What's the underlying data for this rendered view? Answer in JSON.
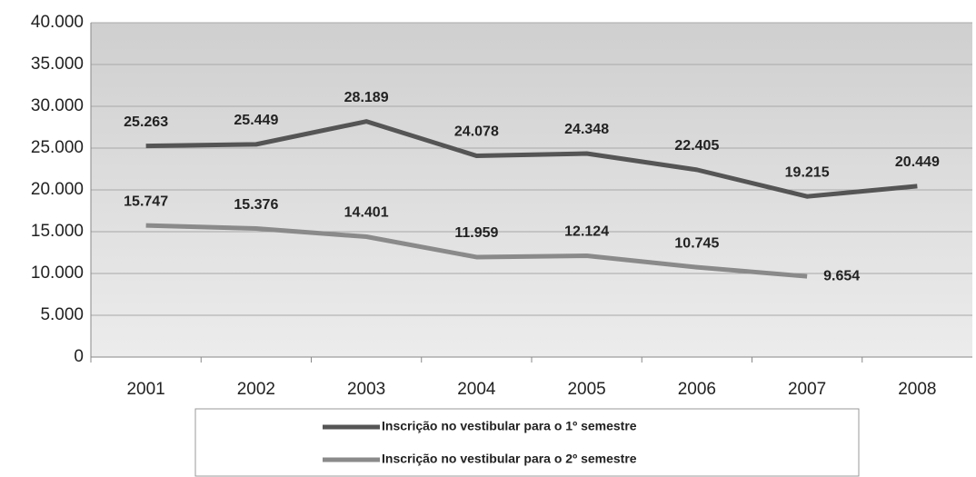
{
  "chart_data": {
    "type": "line",
    "categories": [
      "2001",
      "2002",
      "2003",
      "2004",
      "2005",
      "2006",
      "2007",
      "2008"
    ],
    "series": [
      {
        "name": "Inscrição no vestibular para o 1º semestre",
        "color": "#555555",
        "values": [
          25263,
          25449,
          28189,
          24078,
          24348,
          22405,
          19215,
          20449
        ],
        "value_labels": [
          "25.263",
          "25.449",
          "28.189",
          "24.078",
          "24.348",
          "22.405",
          "19.215",
          "20.449"
        ]
      },
      {
        "name": "Inscrição no vestibular para o 2º semestre",
        "color": "#8a8a8a",
        "values": [
          15747,
          15376,
          14401,
          11959,
          12124,
          10745,
          9654,
          null
        ],
        "value_labels": [
          "15.747",
          "15.376",
          "14.401",
          "11.959",
          "12.124",
          "10.745",
          "9.654",
          null
        ]
      }
    ],
    "ylim": [
      0,
      40000
    ],
    "yticks": [
      0,
      {
        "value": 5000,
        "label": "5.000"
      },
      {
        "value": 10000,
        "label": "10.000"
      },
      {
        "value": 15000,
        "label": "15.000"
      },
      {
        "value": 20000,
        "label": "20.000"
      },
      {
        "value": 25000,
        "label": "25.000"
      },
      {
        "value": 30000,
        "label": "30.000"
      },
      {
        "value": 35000,
        "label": "35.000"
      },
      {
        "value": 40000,
        "label": "40.000"
      }
    ],
    "grid": true
  }
}
